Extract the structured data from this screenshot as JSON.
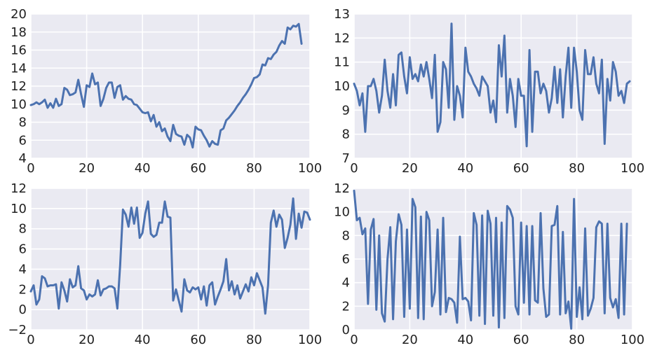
{
  "chart_data": [
    {
      "type": "line",
      "title": "",
      "xlabel": "",
      "ylabel": "",
      "xlim": [
        0,
        100
      ],
      "ylim": [
        4,
        20
      ],
      "xticks": [
        "0",
        "20",
        "40",
        "60",
        "80",
        "100"
      ],
      "yticks": [
        "4",
        "6",
        "8",
        "10",
        "12",
        "14",
        "16",
        "18",
        "20"
      ],
      "grid": true,
      "color": "#4c72b0",
      "series": [
        {
          "x": [
            0,
            1,
            2,
            3,
            4,
            5,
            6,
            7,
            8,
            9,
            10,
            11,
            12,
            13,
            14,
            15,
            16,
            17,
            18,
            19,
            20,
            21,
            22,
            23,
            24,
            25,
            26,
            27,
            28,
            29,
            30,
            31,
            32,
            33,
            34,
            35,
            36,
            37,
            38,
            39,
            40,
            41,
            42,
            43,
            44,
            45,
            46,
            47,
            48,
            49,
            50,
            51,
            52,
            53,
            54,
            55,
            56,
            57,
            58,
            59,
            60,
            61,
            62,
            63,
            64,
            65,
            66,
            67,
            68,
            69,
            70,
            71,
            72,
            73,
            74,
            75,
            76,
            77,
            78,
            79,
            80,
            81,
            82,
            83,
            84,
            85,
            86,
            87,
            88,
            89,
            90,
            91,
            92,
            93,
            94,
            95,
            96,
            97,
            98,
            99,
            100
          ],
          "values": [
            9.9,
            10.0,
            10.2,
            10.0,
            10.2,
            10.5,
            9.6,
            10.1,
            9.6,
            10.6,
            9.8,
            10.0,
            11.8,
            11.6,
            11.0,
            11.1,
            11.3,
            12.7,
            11.1,
            9.7,
            12.1,
            11.9,
            13.4,
            12.2,
            12.4,
            9.8,
            10.6,
            11.8,
            12.4,
            12.4,
            10.7,
            11.9,
            12.1,
            10.5,
            10.9,
            10.6,
            10.5,
            10.0,
            9.9,
            9.5,
            9.1,
            9.0,
            9.1,
            8.1,
            8.8,
            7.5,
            8.0,
            7.0,
            7.3,
            6.4,
            5.9,
            7.7,
            6.7,
            6.5,
            6.4,
            5.5,
            6.6,
            6.3,
            5.2,
            7.5,
            7.2,
            7.1,
            6.5,
            6.0,
            5.3,
            5.9,
            5.6,
            5.5,
            7.1,
            7.3,
            8.2,
            8.5,
            8.9,
            9.3,
            9.8,
            10.2,
            10.7,
            11.1,
            11.6,
            12.2,
            12.9,
            13.0,
            13.3,
            14.4,
            14.3,
            15.1,
            15.0,
            15.5,
            15.8,
            16.5,
            17.0,
            16.7,
            18.5,
            18.3,
            18.7,
            18.6,
            18.9,
            16.7,
            null,
            null,
            null
          ]
        }
      ]
    },
    {
      "type": "line",
      "title": "",
      "xlabel": "",
      "ylabel": "",
      "xlim": [
        0,
        100
      ],
      "ylim": [
        7,
        13
      ],
      "xticks": [
        "0",
        "20",
        "40",
        "60",
        "80",
        "100"
      ],
      "yticks": [
        "7",
        "8",
        "9",
        "10",
        "11",
        "12",
        "13"
      ],
      "grid": true,
      "color": "#4c72b0",
      "series": [
        {
          "x": [
            0,
            1,
            2,
            3,
            4,
            5,
            6,
            7,
            8,
            9,
            10,
            11,
            12,
            13,
            14,
            15,
            16,
            17,
            18,
            19,
            20,
            21,
            22,
            23,
            24,
            25,
            26,
            27,
            28,
            29,
            30,
            31,
            32,
            33,
            34,
            35,
            36,
            37,
            38,
            39,
            40,
            41,
            42,
            43,
            44,
            45,
            46,
            47,
            48,
            49,
            50,
            51,
            52,
            53,
            54,
            55,
            56,
            57,
            58,
            59,
            60,
            61,
            62,
            63,
            64,
            65,
            66,
            67,
            68,
            69,
            70,
            71,
            72,
            73,
            74,
            75,
            76,
            77,
            78,
            79,
            80,
            81,
            82,
            83,
            84,
            85,
            86,
            87,
            88,
            89,
            90,
            91,
            92,
            93,
            94,
            95,
            96,
            97,
            98,
            99,
            100
          ],
          "values": [
            10.1,
            9.8,
            9.2,
            9.7,
            8.1,
            10.0,
            10.0,
            10.3,
            9.8,
            8.9,
            9.6,
            11.1,
            9.8,
            9.1,
            10.5,
            9.2,
            11.3,
            11.4,
            10.4,
            9.7,
            11.2,
            10.3,
            10.5,
            10.2,
            10.9,
            10.4,
            11.0,
            10.3,
            9.5,
            11.3,
            8.1,
            8.5,
            11.0,
            10.7,
            9.1,
            12.6,
            8.6,
            10.0,
            9.6,
            8.7,
            11.6,
            10.6,
            10.4,
            10.1,
            9.9,
            9.6,
            10.4,
            10.2,
            10.0,
            8.9,
            9.4,
            8.5,
            11.7,
            10.4,
            12.1,
            8.9,
            10.3,
            9.6,
            8.3,
            10.3,
            9.6,
            9.6,
            7.5,
            11.5,
            8.1,
            10.6,
            10.6,
            9.7,
            10.1,
            9.8,
            8.9,
            9.5,
            10.8,
            9.3,
            10.7,
            8.7,
            10.4,
            11.6,
            9.1,
            11.6,
            10.6,
            9.0,
            8.6,
            11.5,
            10.5,
            10.5,
            11.2,
            10.1,
            9.7,
            11.1,
            7.6,
            10.3,
            9.4,
            11.0,
            10.6,
            9.6,
            9.8,
            9.3,
            10.1,
            10.2,
            null
          ]
        }
      ]
    },
    {
      "type": "line",
      "title": "",
      "xlabel": "",
      "ylabel": "",
      "xlim": [
        0,
        100
      ],
      "ylim": [
        -2,
        12
      ],
      "xticks": [
        "0",
        "20",
        "40",
        "60",
        "80",
        "100"
      ],
      "yticks": [
        "−2",
        "0",
        "2",
        "4",
        "6",
        "8",
        "10",
        "12"
      ],
      "grid": true,
      "color": "#4c72b0",
      "series": [
        {
          "x": [
            0,
            1,
            2,
            3,
            4,
            5,
            6,
            7,
            8,
            9,
            10,
            11,
            12,
            13,
            14,
            15,
            16,
            17,
            18,
            19,
            20,
            21,
            22,
            23,
            24,
            25,
            26,
            27,
            28,
            29,
            30,
            31,
            32,
            33,
            34,
            35,
            36,
            37,
            38,
            39,
            40,
            41,
            42,
            43,
            44,
            45,
            46,
            47,
            48,
            49,
            50,
            51,
            52,
            53,
            54,
            55,
            56,
            57,
            58,
            59,
            60,
            61,
            62,
            63,
            64,
            65,
            66,
            67,
            68,
            69,
            70,
            71,
            72,
            73,
            74,
            75,
            76,
            77,
            78,
            79,
            80,
            81,
            82,
            83,
            84,
            85,
            86,
            87,
            88,
            89,
            90,
            91,
            92,
            93,
            94,
            95,
            96,
            97,
            98,
            99,
            100
          ],
          "values": [
            1.8,
            2.4,
            0.5,
            1.0,
            3.3,
            3.1,
            2.3,
            2.4,
            2.4,
            2.5,
            0.1,
            2.7,
            1.9,
            0.8,
            3.0,
            2.2,
            2.4,
            4.3,
            2.1,
            1.9,
            1.0,
            1.5,
            1.3,
            1.5,
            2.9,
            1.4,
            2.0,
            2.1,
            2.3,
            2.3,
            2.1,
            0.1,
            4.4,
            9.9,
            9.4,
            8.2,
            10.1,
            8.5,
            10.1,
            7.1,
            7.6,
            9.5,
            10.7,
            7.5,
            7.2,
            7.4,
            8.6,
            8.6,
            10.7,
            9.2,
            9.1,
            0.9,
            2.0,
            0.9,
            -0.2,
            3.0,
            1.9,
            1.7,
            2.2,
            2.0,
            2.2,
            1.0,
            2.3,
            0.4,
            2.4,
            2.7,
            0.5,
            1.3,
            2.0,
            2.8,
            5.0,
            1.9,
            2.8,
            1.5,
            2.4,
            1.1,
            1.8,
            2.5,
            1.8,
            3.2,
            2.4,
            3.6,
            2.9,
            2.2,
            -0.4,
            2.4,
            8.6,
            9.8,
            8.2,
            9.4,
            8.9,
            6.1,
            7.1,
            8.4,
            11.0,
            7.0,
            9.5,
            8.1,
            9.7,
            9.6,
            8.9
          ]
        }
      ]
    },
    {
      "type": "line",
      "title": "",
      "xlabel": "",
      "ylabel": "",
      "xlim": [
        0,
        100
      ],
      "ylim": [
        0,
        12
      ],
      "xticks": [
        "0",
        "20",
        "40",
        "60",
        "80",
        "100"
      ],
      "yticks": [
        "0",
        "2",
        "4",
        "6",
        "8",
        "10",
        "12"
      ],
      "grid": true,
      "color": "#4c72b0",
      "series": [
        {
          "x": [
            0,
            1,
            2,
            3,
            4,
            5,
            6,
            7,
            8,
            9,
            10,
            11,
            12,
            13,
            14,
            15,
            16,
            17,
            18,
            19,
            20,
            21,
            22,
            23,
            24,
            25,
            26,
            27,
            28,
            29,
            30,
            31,
            32,
            33,
            34,
            35,
            36,
            37,
            38,
            39,
            40,
            41,
            42,
            43,
            44,
            45,
            46,
            47,
            48,
            49,
            50,
            51,
            52,
            53,
            54,
            55,
            56,
            57,
            58,
            59,
            60,
            61,
            62,
            63,
            64,
            65,
            66,
            67,
            68,
            69,
            70,
            71,
            72,
            73,
            74,
            75,
            76,
            77,
            78,
            79,
            80,
            81,
            82,
            83,
            84,
            85,
            86,
            87,
            88,
            89,
            90,
            91,
            92,
            93,
            94,
            95,
            96,
            97,
            98,
            99,
            100
          ],
          "values": [
            11.8,
            9.3,
            9.5,
            8.1,
            8.6,
            2.2,
            8.5,
            9.4,
            1.7,
            8.0,
            1.4,
            0.7,
            6.0,
            8.7,
            0.9,
            7.5,
            9.8,
            8.9,
            1.1,
            8.5,
            1.8,
            11.1,
            10.4,
            1.0,
            9.6,
            0.9,
            10.0,
            9.3,
            2.0,
            3.2,
            8.5,
            1.3,
            9.5,
            1.5,
            2.7,
            2.6,
            2.3,
            0.6,
            7.9,
            2.6,
            2.7,
            2.4,
            0.8,
            9.9,
            8.9,
            1.2,
            9.7,
            0.5,
            10.1,
            9.0,
            1.2,
            9.5,
            0.2,
            9.1,
            1.0,
            10.5,
            10.2,
            9.5,
            2.0,
            1.3,
            9.1,
            2.3,
            8.8,
            1.3,
            8.8,
            2.5,
            2.3,
            9.9,
            3.5,
            1.1,
            1.3,
            8.8,
            8.9,
            10.5,
            1.3,
            8.3,
            1.4,
            2.4,
            0.1,
            11.1,
            1.1,
            3.6,
            0.9,
            8.6,
            1.2,
            1.8,
            2.7,
            8.7,
            9.2,
            9.0,
            1.4,
            9.0,
            2.7,
            1.9,
            2.6,
            1.0,
            9.0,
            1.3,
            9.0,
            null,
            null
          ]
        }
      ]
    }
  ]
}
